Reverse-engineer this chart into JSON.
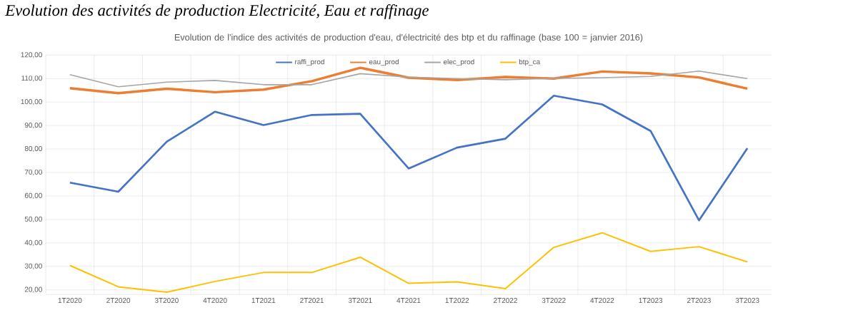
{
  "chart_data": {
    "type": "line",
    "title": "Evolution des activités de production Electricité, Eau et raffinage",
    "subtitle": "Evolution de l'indice des activités de production d'eau, d'électricité des btp et du raffinage (base 100 = janvier 2016)",
    "categories": [
      "1T2020",
      "2T2020",
      "3T2020",
      "4T2020",
      "1T2021",
      "2T2021",
      "3T2021",
      "4T2021",
      "1T2022",
      "2T2022",
      "3T2022",
      "4T2022",
      "1T2023",
      "2T2023",
      "3T2023"
    ],
    "series": [
      {
        "name": "raffi_prod",
        "color": "#4472c4",
        "values": [
          65.7,
          61.8,
          83.1,
          95.9,
          90.2,
          94.5,
          95.0,
          71.7,
          80.6,
          84.4,
          102.7,
          99.0,
          87.7,
          49.6,
          80.3
        ]
      },
      {
        "name": "eau_prod",
        "color": "#ed7d31",
        "values": [
          105.9,
          103.8,
          105.7,
          104.2,
          105.3,
          108.9,
          114.6,
          110.4,
          109.4,
          110.7,
          110.0,
          113.0,
          112.2,
          110.5,
          105.7
        ]
      },
      {
        "name": "elec_prod",
        "color": "#a5a5a5",
        "values": [
          111.7,
          106.5,
          108.5,
          109.2,
          107.4,
          107.4,
          112.1,
          110.6,
          110.0,
          109.5,
          110.1,
          110.4,
          110.9,
          113.2,
          110.0
        ]
      },
      {
        "name": "btp_ca",
        "color": "#ffc000",
        "values": [
          30.4,
          21.3,
          19.0,
          23.6,
          27.4,
          27.4,
          33.9,
          22.8,
          23.4,
          20.5,
          38.1,
          44.3,
          36.4,
          38.4,
          31.9
        ]
      }
    ],
    "ylim": [
      18,
      120
    ],
    "yticks": [
      {
        "value": 20,
        "label": "20,00"
      },
      {
        "value": 30,
        "label": "30,00"
      },
      {
        "value": 40,
        "label": "40,00"
      },
      {
        "value": 50,
        "label": "50,00"
      },
      {
        "value": 60,
        "label": "60,00"
      },
      {
        "value": 70,
        "label": "70,00"
      },
      {
        "value": 80,
        "label": "80,00"
      },
      {
        "value": 90,
        "label": "90,00"
      },
      {
        "value": 100,
        "label": "100,00"
      },
      {
        "value": 110,
        "label": "110,00"
      },
      {
        "value": 120,
        "label": "120,00"
      }
    ],
    "grid": true,
    "legend": "top",
    "marker": "none",
    "line_style": "solid"
  }
}
